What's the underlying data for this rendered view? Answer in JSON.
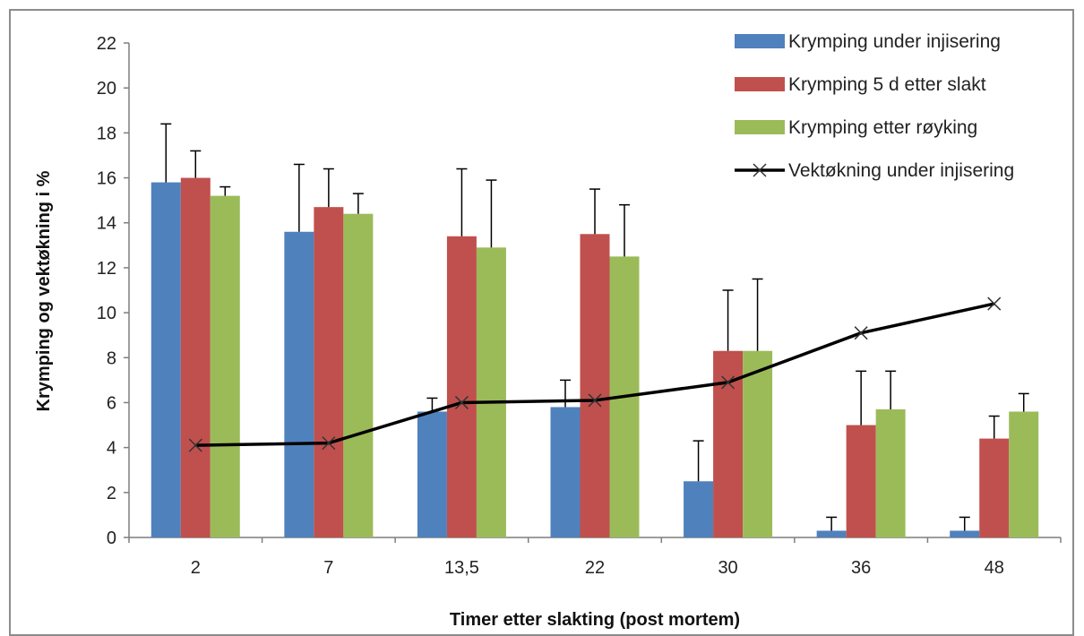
{
  "chart_data": {
    "type": "bar",
    "xlabel": "Timer etter slakting (post mortem)",
    "ylabel": "Krymping og vektøkning i %",
    "ylim": [
      0,
      22
    ],
    "yticks": [
      0,
      2,
      4,
      6,
      8,
      10,
      12,
      14,
      16,
      18,
      20,
      22
    ],
    "grid": false,
    "legend_position": "top-right",
    "categories": [
      "2",
      "7",
      "13,5",
      "22",
      "30",
      "36",
      "48"
    ],
    "series": [
      {
        "name": "Krymping under injisering",
        "type": "bar",
        "color": "#4f81bd",
        "values": [
          15.8,
          13.6,
          5.6,
          5.8,
          2.5,
          0.3,
          0.3
        ],
        "error_upper": [
          18.4,
          16.6,
          6.2,
          7.0,
          4.3,
          0.9,
          0.9
        ]
      },
      {
        "name": "Krymping 5 d etter slakt",
        "type": "bar",
        "color": "#c0504d",
        "values": [
          16.0,
          14.7,
          13.4,
          13.5,
          8.3,
          5.0,
          4.4
        ],
        "error_upper": [
          17.2,
          16.4,
          16.4,
          15.5,
          11.0,
          7.4,
          5.4
        ]
      },
      {
        "name": "Krymping etter røyking",
        "type": "bar",
        "color": "#9bbb59",
        "values": [
          15.2,
          14.4,
          12.9,
          12.5,
          8.3,
          5.7,
          5.6
        ],
        "error_upper": [
          15.6,
          15.3,
          15.9,
          14.8,
          11.5,
          7.4,
          6.4
        ]
      },
      {
        "name": "Vektøkning under injisering",
        "type": "line",
        "marker": "x",
        "color": "#000000",
        "values": [
          4.1,
          4.2,
          6.0,
          6.1,
          6.9,
          9.1,
          10.4
        ]
      }
    ]
  }
}
